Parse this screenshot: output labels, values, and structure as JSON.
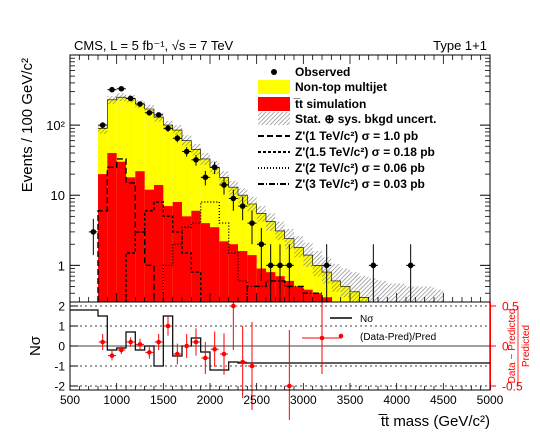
{
  "chart_data": [
    {
      "type": "bar",
      "title": "CMS, L = 5 fb⁻¹, √s = 7 TeV",
      "subtitle": "Type 1+1",
      "ylabel": "Events / 100 GeV/c²",
      "yscale": "log",
      "ylim": [
        0.3,
        1000
      ],
      "xlim": [
        500,
        5000
      ],
      "yticks": [
        {
          "v": 1,
          "label": "1"
        },
        {
          "v": 10,
          "label": "10"
        },
        {
          "v": 100,
          "label": "10²"
        }
      ],
      "bin_edges": [
        800,
        900,
        1000,
        1100,
        1200,
        1300,
        1400,
        1500,
        1600,
        1700,
        1800,
        1900,
        2000,
        2100,
        2200,
        2300,
        2400,
        2500,
        2600,
        2700,
        2800,
        2900,
        3000,
        3100,
        3200,
        3300,
        3400,
        3500,
        3600,
        3700,
        3800,
        3900,
        4000,
        4100,
        4200,
        4300,
        4400,
        4500
      ],
      "series": [
        {
          "name": "Non-top multijet",
          "color": "#ffff00",
          "values": [
            90,
            230,
            250,
            240,
            200,
            170,
            130,
            100,
            85,
            60,
            45,
            33,
            25,
            18,
            13,
            10,
            7.5,
            5.5,
            4.2,
            3.1,
            2.4,
            1.8,
            1.4,
            1.0,
            0.8,
            0.6,
            0.5,
            0.42,
            0.35,
            0.3,
            0.3,
            0.3,
            0.3,
            0.3,
            0.3,
            0.3,
            0.3
          ]
        },
        {
          "name": "t̅t simulation",
          "color": "#ff0000",
          "values": [
            20,
            40,
            30,
            18,
            22,
            12,
            14,
            7,
            8,
            5,
            6,
            4,
            3.5,
            2.2,
            2,
            1.6,
            1.4,
            0.9,
            0.8,
            0.7,
            0.6,
            0.5,
            0.45,
            0.4,
            0.35,
            0.3,
            0.3,
            0.3,
            0.3,
            0.3,
            0.3,
            0.3,
            0.3,
            0.3,
            0.3,
            0.3,
            0.3
          ]
        },
        {
          "name": "Stat. ⊕ sys. bkgd uncert.",
          "color": "#999999",
          "band": [
            [
              75,
              105
            ],
            [
              200,
              260
            ],
            [
              220,
              285
            ],
            [
              210,
              270
            ],
            [
              175,
              225
            ],
            [
              150,
              195
            ],
            [
              112,
              150
            ],
            [
              85,
              115
            ],
            [
              72,
              100
            ],
            [
              50,
              72
            ],
            [
              37,
              54
            ],
            [
              27,
              40
            ],
            [
              20,
              31
            ],
            [
              14,
              22
            ],
            [
              10,
              16
            ],
            [
              7.8,
              12.5
            ],
            [
              5.8,
              9.5
            ],
            [
              4.2,
              7
            ],
            [
              3.1,
              5.5
            ],
            [
              2.3,
              4.2
            ],
            [
              1.7,
              3.3
            ],
            [
              1.3,
              2.6
            ],
            [
              0.95,
              2.1
            ],
            [
              0.7,
              1.6
            ],
            [
              0.55,
              1.3
            ],
            [
              0.42,
              1.05
            ],
            [
              0.35,
              0.9
            ],
            [
              0.3,
              0.8
            ],
            [
              0.3,
              0.7
            ],
            [
              0.3,
              0.65
            ],
            [
              0.3,
              0.6
            ],
            [
              0.3,
              0.55
            ],
            [
              0.3,
              0.55
            ],
            [
              0.3,
              0.5
            ],
            [
              0.3,
              0.5
            ],
            [
              0.3,
              0.5
            ],
            [
              0.3,
              0.45
            ]
          ]
        },
        {
          "name": "Z'(1 TeV/c²) σ = 1.0 pb",
          "color": "#000000",
          "dash": "6,3",
          "edges": [
            800,
            900,
            1000,
            1100,
            1200,
            1300,
            1400
          ],
          "values": [
            6,
            25,
            33,
            15,
            3,
            1
          ]
        },
        {
          "name": "Z'(1.5 TeV/c²) σ = 0.18 pb",
          "color": "#000000",
          "dash": "3,2",
          "edges": [
            1100,
            1200,
            1300,
            1400,
            1500,
            1600,
            1700,
            1800,
            1900
          ],
          "values": [
            1.5,
            3,
            6,
            8,
            5,
            3,
            1.5,
            0.8
          ]
        },
        {
          "name": "Z'(2 TeV/c²) σ = 0.06 pb",
          "color": "#000000",
          "dash": "1,2",
          "edges": [
            1500,
            1600,
            1700,
            1800,
            1900,
            2000,
            2100,
            2200,
            2300,
            2400
          ],
          "values": [
            1,
            2,
            3.5,
            4,
            8,
            8,
            4,
            1.5,
            0.6
          ]
        },
        {
          "name": "Z'(3 TeV/c²) σ = 0.03 pb",
          "color": "#000000",
          "dash": "6,2,1,2",
          "edges": [
            2400,
            2600,
            2800,
            3000,
            3200
          ],
          "values": [
            0.5,
            0.6,
            0.5,
            0.4
          ]
        },
        {
          "name": "Observed",
          "color": "#000000",
          "points": [
            [
              750,
              3,
              1.6
            ],
            [
              850,
              100,
              10
            ],
            [
              950,
              320,
              18
            ],
            [
              1050,
              330,
              18
            ],
            [
              1150,
              240,
              16
            ],
            [
              1250,
              200,
              14
            ],
            [
              1350,
              150,
              12
            ],
            [
              1450,
              140,
              12
            ],
            [
              1550,
              90,
              10
            ],
            [
              1650,
              65,
              8
            ],
            [
              1750,
              42,
              6.5
            ],
            [
              1850,
              32,
              5.6
            ],
            [
              1950,
              18,
              4.2
            ],
            [
              2050,
              25,
              5
            ],
            [
              2150,
              14,
              3.8
            ],
            [
              2250,
              9,
              3
            ],
            [
              2350,
              7,
              2.6
            ],
            [
              2450,
              4,
              2
            ],
            [
              2550,
              2,
              1.4
            ],
            [
              2650,
              1,
              1
            ],
            [
              2750,
              1,
              1
            ],
            [
              2850,
              1,
              1
            ],
            [
              3250,
              1,
              1
            ],
            [
              3750,
              1,
              1
            ],
            [
              4150,
              1,
              1
            ]
          ]
        }
      ]
    },
    {
      "type": "line",
      "xlabel": "t̅t mass (GeV/c²)",
      "ylabel": "Nσ",
      "ylabel_right": "Data − Predicted / Predicted",
      "right_numerator": "Data − Predicted",
      "right_denominator": "Predicted",
      "ylim": [
        -2.2,
        2.2
      ],
      "y_right_lim": [
        -0.55,
        0.55
      ],
      "xticks": [
        500,
        1000,
        1500,
        2000,
        2500,
        3000,
        3500,
        4000,
        4500,
        5000
      ],
      "yticks": [
        -2,
        -1,
        0,
        1,
        2
      ],
      "y_right_ticks": [
        -0.5,
        0,
        0.5
      ],
      "series": [
        {
          "name": "Nσ",
          "color": "#000000",
          "edges": [
            500,
            800,
            900,
            1000,
            1100,
            1200,
            1300,
            1400,
            1500,
            1600,
            1700,
            1800,
            1900,
            2000,
            2200,
            2300,
            5000
          ],
          "values": [
            1.8,
            1.5,
            -0.2,
            -0.1,
            0.7,
            -0.2,
            0.0,
            -1.0,
            1.5,
            -0.5,
            0.0,
            0.4,
            -0.3,
            -1.2,
            -0.8,
            -0.85
          ]
        },
        {
          "name": "(Data-Pred)/Pred",
          "color": "#ff0000",
          "points": [
            [
              850,
              0.05,
              0.1
            ],
            [
              950,
              -0.12,
              0.06
            ],
            [
              1050,
              -0.05,
              0.05
            ],
            [
              1150,
              0.05,
              0.06
            ],
            [
              1250,
              0.02,
              0.07
            ],
            [
              1350,
              -0.08,
              0.08
            ],
            [
              1450,
              0.05,
              0.1
            ],
            [
              1550,
              0.25,
              0.12
            ],
            [
              1650,
              -0.1,
              0.13
            ],
            [
              1750,
              0.0,
              0.15
            ],
            [
              1850,
              0.05,
              0.17
            ],
            [
              1950,
              -0.15,
              0.2
            ],
            [
              2050,
              -0.04,
              0.22
            ],
            [
              2150,
              -0.1,
              0.26
            ],
            [
              2250,
              0.5,
              0.55
            ],
            [
              2350,
              -0.2,
              0.45
            ],
            [
              2450,
              -0.25,
              0.55
            ],
            [
              2850,
              -0.5,
              0.7
            ],
            [
              3200,
              0.1,
              0.45
            ]
          ]
        }
      ]
    }
  ]
}
